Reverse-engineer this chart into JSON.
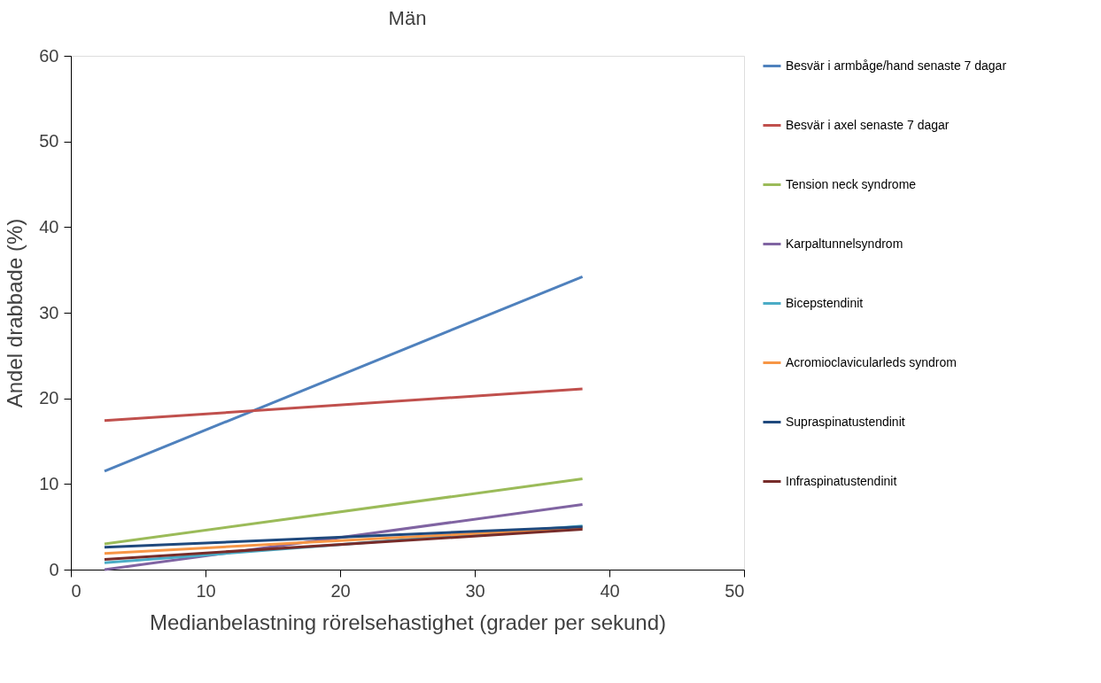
{
  "chart_data": {
    "type": "line",
    "title": "Män",
    "xlabel": "Medianbelastning rörelsehastighet (grader per sekund)",
    "ylabel": "Andel drabbade (%)",
    "x": [
      2.5,
      38
    ],
    "series": [
      {
        "name": "Besvär i armbåge/hand senaste 7 dagar",
        "color": "#4f81bd",
        "values": [
          11.5,
          34.2
        ]
      },
      {
        "name": "Besvär i axel senaste 7 dagar",
        "color": "#c0504d",
        "values": [
          17.4,
          21.1
        ]
      },
      {
        "name": "Tension neck syndrome",
        "color": "#9bbb59",
        "values": [
          3.0,
          10.6
        ]
      },
      {
        "name": "Karpaltunnelsyndrom",
        "color": "#8064a2",
        "values": [
          0.0,
          7.6
        ]
      },
      {
        "name": "Bicepstendinit",
        "color": "#4bacc6",
        "values": [
          0.8,
          5.1
        ]
      },
      {
        "name": "Acromioclavicularleds syndrom",
        "color": "#f79646",
        "values": [
          1.9,
          4.9
        ]
      },
      {
        "name": "Supraspinatustendinit",
        "color": "#1f497d",
        "values": [
          2.6,
          5.0
        ]
      },
      {
        "name": "Infraspinatustendinit",
        "color": "#772c2a",
        "values": [
          1.2,
          4.7
        ]
      }
    ],
    "xlim": [
      0,
      50
    ],
    "xticks": [
      0,
      10,
      20,
      30,
      40,
      50
    ],
    "ylim": [
      0,
      60
    ],
    "yticks": [
      0,
      10,
      20,
      30,
      40,
      50,
      60
    ],
    "grid": false,
    "legend": "right",
    "marker": "none",
    "line_style": "solid"
  }
}
